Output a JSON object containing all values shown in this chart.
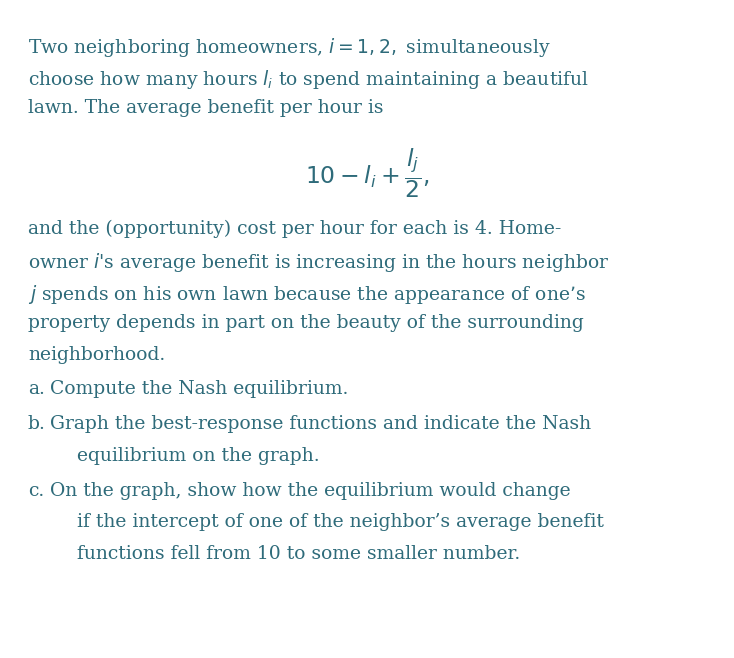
{
  "background_color": "#ffffff",
  "text_color": "#2e6b7a",
  "figsize": [
    7.34,
    6.58
  ],
  "dpi": 100,
  "paragraph1": "Two neighboring homeowners, ",
  "paragraph1_math": "i = 1, 2,",
  "paragraph1_rest": " simultaneously\nchoose how many hours ",
  "paragraph1_li": "l",
  "paragraph1_sub": "i",
  "paragraph1_rest2": " to spend maintaining a beautiful\nlawn. The average benefit per hour is",
  "formula_main": "10 − l",
  "formula_sub": "i",
  "formula_rest": " + ",
  "formula_frac_num": "l",
  "formula_frac_sub": "j",
  "formula_frac_den": "2",
  "paragraph2": "and the (opportunity) cost per hour for each is 4. Home-\nowner ",
  "paragraph2_i": "i",
  "paragraph2_apos": "’s average benefit is increasing in the hours neighbor\n",
  "paragraph2_j": "j",
  "paragraph2_rest": " spends on his own lawn because the appearance of one’s\nproperty depends in part on the beauty of the surrounding\nneighborhood.",
  "item_a": "a. Compute the Nash equilibrium.",
  "item_b": "b. Graph the best-response functions and indicate the Nash\n   equilibrium on the graph.",
  "item_c": "c. On the graph, show how the equilibrium would change\n   if the intercept of one of the neighbor’s average benefit\n   functions fell from 10 to some smaller number."
}
